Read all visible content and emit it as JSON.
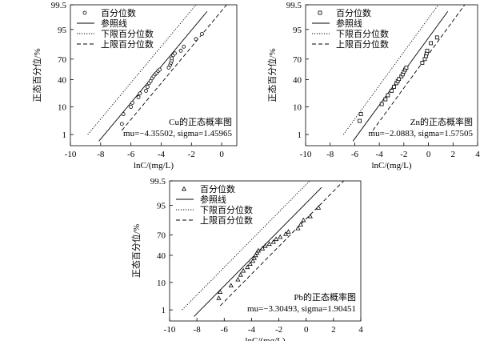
{
  "chart_data": [
    {
      "type": "scatter",
      "annotation": "Cu的正态概率图",
      "params": "mu=−4.35502, sigma=1.45965",
      "xlabel": "lnC/(mg/L)",
      "ylabel": "正态百分位/%",
      "xlim": [
        -10,
        1
      ],
      "xticks": [
        -10,
        -8,
        -6,
        -4,
        -2,
        0
      ],
      "yticks": [
        1,
        10,
        40,
        70,
        95,
        99.5
      ],
      "ylim_percent": [
        0.3,
        99.5
      ],
      "mu": -4.35502,
      "sigma": 1.45965,
      "marker": "circle",
      "legend": [
        "百分位数",
        "参照线",
        "下限百分位数",
        "上限百分位数"
      ],
      "series": [
        {
          "name": "百分位数",
          "points": [
            [
              -6.6,
              2.7
            ],
            [
              -6.5,
              6
            ],
            [
              -6.0,
              10
            ],
            [
              -5.9,
              13
            ],
            [
              -5.5,
              18
            ],
            [
              -5.4,
              22
            ],
            [
              -5.0,
              25
            ],
            [
              -4.9,
              30
            ],
            [
              -4.8,
              35
            ],
            [
              -4.7,
              38
            ],
            [
              -4.6,
              42
            ],
            [
              -4.5,
              45
            ],
            [
              -4.4,
              48
            ],
            [
              -4.3,
              50
            ],
            [
              -4.2,
              53
            ],
            [
              -4.1,
              55
            ],
            [
              -3.5,
              58
            ],
            [
              -3.4,
              62
            ],
            [
              -3.35,
              65
            ],
            [
              -3.3,
              68
            ],
            [
              -3.3,
              71
            ],
            [
              -3.2,
              75
            ],
            [
              -3.1,
              77
            ],
            [
              -2.7,
              80
            ],
            [
              -2.5,
              84
            ],
            [
              -1.7,
              90
            ],
            [
              -1.3,
              93
            ]
          ]
        }
      ]
    },
    {
      "type": "scatter",
      "annotation": "Zn的正态概率图",
      "params": "mu=−2.0883, sigma=1.57505",
      "xlabel": "lnC/(mg/L)",
      "ylabel": "正态百分位/%",
      "xlim": [
        -10,
        4
      ],
      "xticks": [
        -10,
        -8,
        -6,
        -4,
        -2,
        0,
        2,
        4
      ],
      "yticks": [
        1,
        10,
        40,
        70,
        95,
        99.5
      ],
      "ylim_percent": [
        0.3,
        99.5
      ],
      "mu": -2.0883,
      "sigma": 1.57505,
      "marker": "square",
      "legend": [
        "百分位数",
        "参照线",
        "下限百分位数",
        "上限百分位数"
      ],
      "series": [
        {
          "name": "百分位数",
          "points": [
            [
              -5.6,
              3.5
            ],
            [
              -5.5,
              6
            ],
            [
              -3.8,
              12
            ],
            [
              -3.5,
              16
            ],
            [
              -3.3,
              20
            ],
            [
              -3.0,
              25
            ],
            [
              -2.8,
              30
            ],
            [
              -2.6,
              35
            ],
            [
              -2.5,
              38
            ],
            [
              -2.4,
              41
            ],
            [
              -2.2,
              45
            ],
            [
              -2.1,
              48
            ],
            [
              -2.0,
              52
            ],
            [
              -1.9,
              55
            ],
            [
              -1.8,
              58
            ],
            [
              -0.5,
              65
            ],
            [
              -0.3,
              70
            ],
            [
              -0.2,
              74
            ],
            [
              -0.15,
              77
            ],
            [
              -0.1,
              80
            ],
            [
              0.2,
              87
            ],
            [
              0.7,
              91
            ]
          ]
        }
      ]
    },
    {
      "type": "scatter",
      "annotation": "Pb的正态概率图",
      "params": "mu=−3.30493, sigma=1.90451",
      "xlabel": "lnC/(mg/L)",
      "ylabel": "正态百分位/%",
      "xlim": [
        -10,
        4
      ],
      "xticks": [
        -10,
        -8,
        -6,
        -4,
        -2,
        0,
        2,
        4
      ],
      "yticks": [
        1,
        10,
        40,
        70,
        95,
        99.5
      ],
      "ylim_percent": [
        0.3,
        99.5
      ],
      "mu": -3.30493,
      "sigma": 1.90451,
      "marker": "triangle",
      "legend": [
        "百分位数",
        "参照线",
        "下限百分位数",
        "上限百分位数"
      ],
      "series": [
        {
          "name": "百分位数",
          "points": [
            [
              -6.4,
              3
            ],
            [
              -6.3,
              5
            ],
            [
              -5.5,
              8
            ],
            [
              -5.0,
              12
            ],
            [
              -4.8,
              16
            ],
            [
              -4.6,
              20
            ],
            [
              -4.3,
              24
            ],
            [
              -4.1,
              28
            ],
            [
              -3.9,
              32
            ],
            [
              -3.8,
              36
            ],
            [
              -3.7,
              40
            ],
            [
              -3.6,
              44
            ],
            [
              -3.5,
              47
            ],
            [
              -3.2,
              50
            ],
            [
              -3.0,
              54
            ],
            [
              -2.7,
              57
            ],
            [
              -2.4,
              60
            ],
            [
              -2.2,
              64
            ],
            [
              -1.9,
              67
            ],
            [
              -1.5,
              71
            ],
            [
              -1.3,
              74
            ],
            [
              -0.6,
              78
            ],
            [
              -0.4,
              82
            ],
            [
              -0.2,
              86
            ],
            [
              0.3,
              89
            ],
            [
              0.9,
              94
            ]
          ]
        }
      ]
    }
  ]
}
